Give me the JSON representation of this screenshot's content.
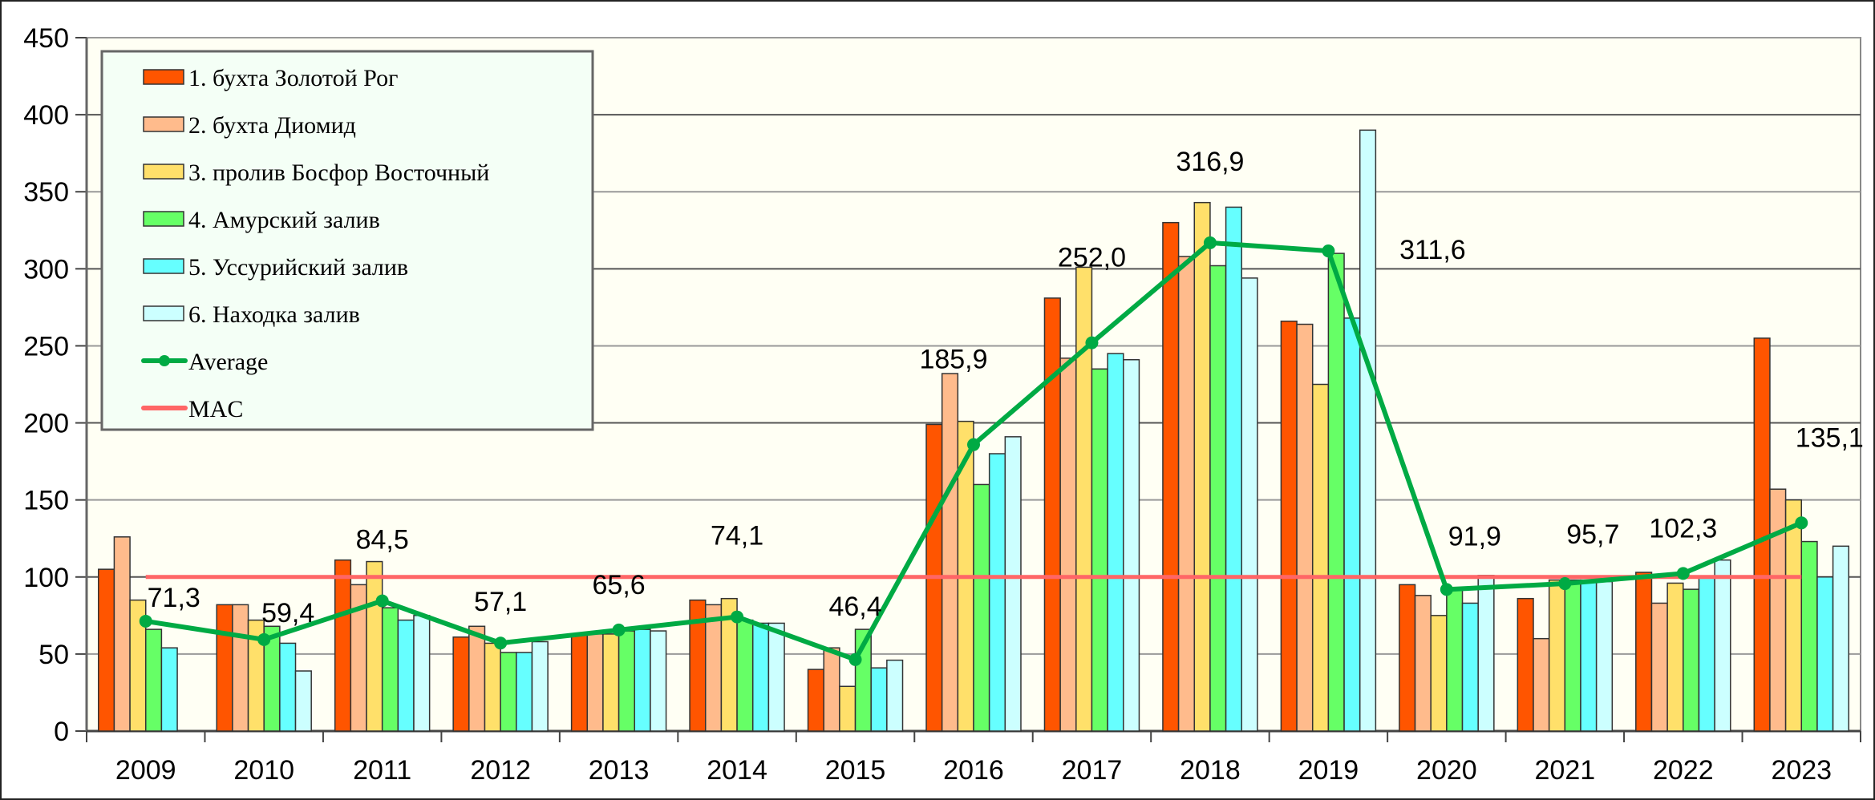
{
  "chart_data": {
    "type": "bar",
    "title": "",
    "xlabel": "",
    "ylabel": "",
    "ylim": [
      0,
      450
    ],
    "yticks": [
      "0",
      "50",
      "100",
      "150",
      "200",
      "250",
      "300",
      "350",
      "400",
      "450"
    ],
    "grid": true,
    "legend_position": "top-left",
    "categories": [
      "2009",
      "2010",
      "2011",
      "2012",
      "2013",
      "2014",
      "2015",
      "2016",
      "2017",
      "2018",
      "2019",
      "2020",
      "2021",
      "2022",
      "2023"
    ],
    "series": [
      {
        "name": "1. бухта Золотой Рог",
        "color": "#ff5500",
        "values": [
          105,
          82,
          111,
          61,
          63,
          85,
          40,
          199,
          281,
          330,
          266,
          95,
          86,
          103,
          255
        ]
      },
      {
        "name": "2. бухта Диомид",
        "color": "#ffbb8c",
        "values": [
          126,
          82,
          95,
          68,
          63,
          82,
          54,
          232,
          242,
          308,
          264,
          88,
          60,
          83,
          157
        ]
      },
      {
        "name": "3. пролив Босфор Восточный",
        "color": "#ffe06a",
        "values": [
          85,
          72,
          110,
          57,
          63,
          86,
          29,
          201,
          301,
          343,
          225,
          75,
          98,
          96,
          150
        ]
      },
      {
        "name": "4. Амурский залив",
        "color": "#66ff66",
        "values": [
          66,
          68,
          80,
          51,
          65,
          72,
          66,
          160,
          235,
          302,
          310,
          92,
          98,
          92,
          123
        ]
      },
      {
        "name": "5. Уссурийский залив",
        "color": "#66ffff",
        "values": [
          54,
          57,
          72,
          51,
          66,
          70,
          41,
          180,
          245,
          340,
          268,
          83,
          98,
          100,
          100
        ]
      },
      {
        "name": "6. Находка залив",
        "color": "#ccffff",
        "values": [
          null,
          39,
          75,
          58,
          65,
          70,
          46,
          191,
          241,
          294,
          390,
          101,
          97,
          111,
          120
        ]
      }
    ],
    "line_series": [
      {
        "name": "Average",
        "color": "#00aa44",
        "values": [
          71.3,
          59.4,
          84.5,
          57.1,
          65.6,
          74.1,
          46.4,
          185.9,
          252.0,
          316.9,
          311.6,
          91.9,
          95.7,
          102.3,
          135.1
        ],
        "labels": [
          "71,3",
          "59,4",
          "84,5",
          "57,1",
          "65,6",
          "74,1",
          "46,4",
          "185,9",
          "252,0",
          "316,9",
          "311,6",
          "91,9",
          "95,7",
          "102,3",
          "135,1"
        ]
      },
      {
        "name": "MAC",
        "color": "#ff6666",
        "value": 100
      }
    ]
  }
}
